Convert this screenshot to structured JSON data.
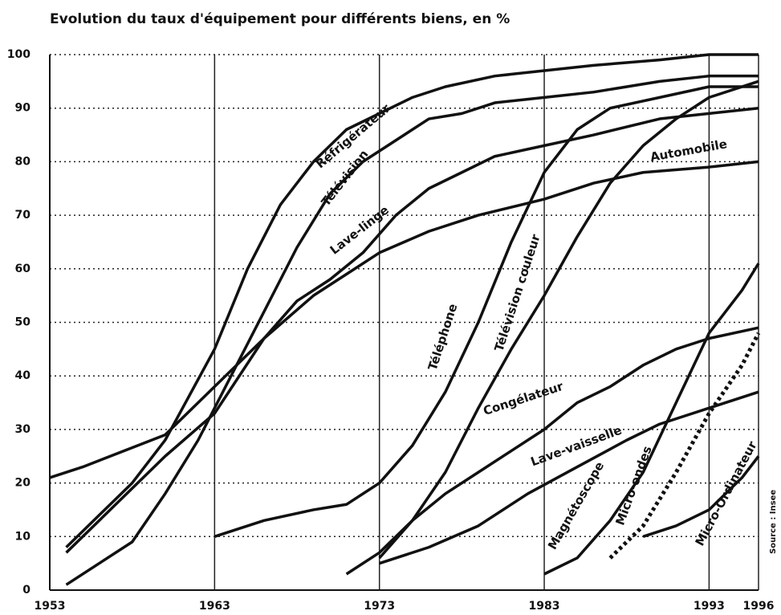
{
  "chart_data": {
    "type": "line",
    "title": "Evolution du taux d'équipement pour différents biens, en %",
    "source": "Source : Insee",
    "xlim": [
      1953,
      1996
    ],
    "ylim": [
      0,
      100
    ],
    "xticks": [
      1953,
      1963,
      1973,
      1983,
      1993,
      1996
    ],
    "yticks": [
      0,
      10,
      20,
      30,
      40,
      50,
      60,
      70,
      80,
      90,
      100
    ],
    "grid": true,
    "series": [
      {
        "name": "Réfrigérateur",
        "color": "#111111",
        "x": [
          1954,
          1958,
          1960,
          1963,
          1965,
          1967,
          1969,
          1971,
          1973,
          1975,
          1977,
          1980,
          1983,
          1986,
          1990,
          1993,
          1996
        ],
        "values": [
          8,
          20,
          28,
          45,
          60,
          72,
          80,
          86,
          89,
          92,
          94,
          96,
          97,
          98,
          99,
          100,
          100
        ]
      },
      {
        "name": "Télévision",
        "color": "#111111",
        "x": [
          1954,
          1958,
          1960,
          1962,
          1964,
          1966,
          1968,
          1970,
          1972,
          1974,
          1976,
          1978,
          1980,
          1983,
          1986,
          1990,
          1993,
          1996
        ],
        "values": [
          1,
          9,
          18,
          28,
          40,
          52,
          64,
          74,
          80,
          84,
          88,
          89,
          91,
          92,
          93,
          95,
          96,
          96
        ]
      },
      {
        "name": "Lave-linge",
        "color": "#111111",
        "x": [
          1954,
          1957,
          1960,
          1963,
          1966,
          1968,
          1970,
          1972,
          1974,
          1976,
          1978,
          1980,
          1983,
          1986,
          1990,
          1993,
          1996
        ],
        "values": [
          7,
          16,
          25,
          33,
          47,
          54,
          58,
          63,
          70,
          75,
          78,
          81,
          83,
          85,
          88,
          89,
          90
        ]
      },
      {
        "name": "Automobile",
        "color": "#111111",
        "x": [
          1953,
          1955,
          1960,
          1963,
          1966,
          1969,
          1971,
          1973,
          1976,
          1979,
          1983,
          1986,
          1989,
          1993,
          1996
        ],
        "values": [
          21,
          23,
          29,
          38,
          47,
          55,
          59,
          63,
          67,
          70,
          73,
          76,
          78,
          79,
          80
        ]
      },
      {
        "name": "Téléphone",
        "color": "#111111",
        "x": [
          1963,
          1966,
          1969,
          1971,
          1973,
          1975,
          1977,
          1979,
          1981,
          1983,
          1985,
          1987,
          1990,
          1993,
          1996
        ],
        "values": [
          10,
          13,
          15,
          16,
          20,
          27,
          37,
          50,
          65,
          78,
          86,
          90,
          92,
          94,
          94
        ]
      },
      {
        "name": "Télévision couleur",
        "color": "#111111",
        "x": [
          1971,
          1973,
          1975,
          1977,
          1979,
          1981,
          1983,
          1985,
          1987,
          1989,
          1991,
          1993,
          1996
        ],
        "values": [
          3,
          7,
          13,
          22,
          34,
          45,
          55,
          66,
          76,
          83,
          88,
          92,
          95
        ]
      },
      {
        "name": "Congélateur",
        "color": "#111111",
        "x": [
          1973,
          1975,
          1977,
          1979,
          1981,
          1983,
          1985,
          1987,
          1989,
          1991,
          1993,
          1996
        ],
        "values": [
          6,
          13,
          18,
          22,
          26,
          30,
          35,
          38,
          42,
          45,
          47,
          49
        ]
      },
      {
        "name": "Lave-vaisselle",
        "color": "#111111",
        "x": [
          1973,
          1976,
          1979,
          1982,
          1985,
          1988,
          1990,
          1993,
          1996
        ],
        "values": [
          5,
          8,
          12,
          18,
          23,
          28,
          31,
          34,
          37
        ]
      },
      {
        "name": "Magnétoscope",
        "color": "#111111",
        "x": [
          1983,
          1985,
          1987,
          1989,
          1991,
          1993,
          1995,
          1996
        ],
        "values": [
          3,
          6,
          13,
          22,
          35,
          48,
          56,
          61
        ]
      },
      {
        "name": "Micro-ondes",
        "color": "#111111",
        "dotted": true,
        "x": [
          1987,
          1989,
          1991,
          1993,
          1995,
          1996
        ],
        "values": [
          6,
          12,
          22,
          33,
          42,
          48
        ]
      },
      {
        "name": "Micro-Ordinateur",
        "color": "#111111",
        "x": [
          1989,
          1991,
          1993,
          1995,
          1996
        ],
        "values": [
          10,
          12,
          15,
          21,
          25
        ]
      }
    ]
  }
}
